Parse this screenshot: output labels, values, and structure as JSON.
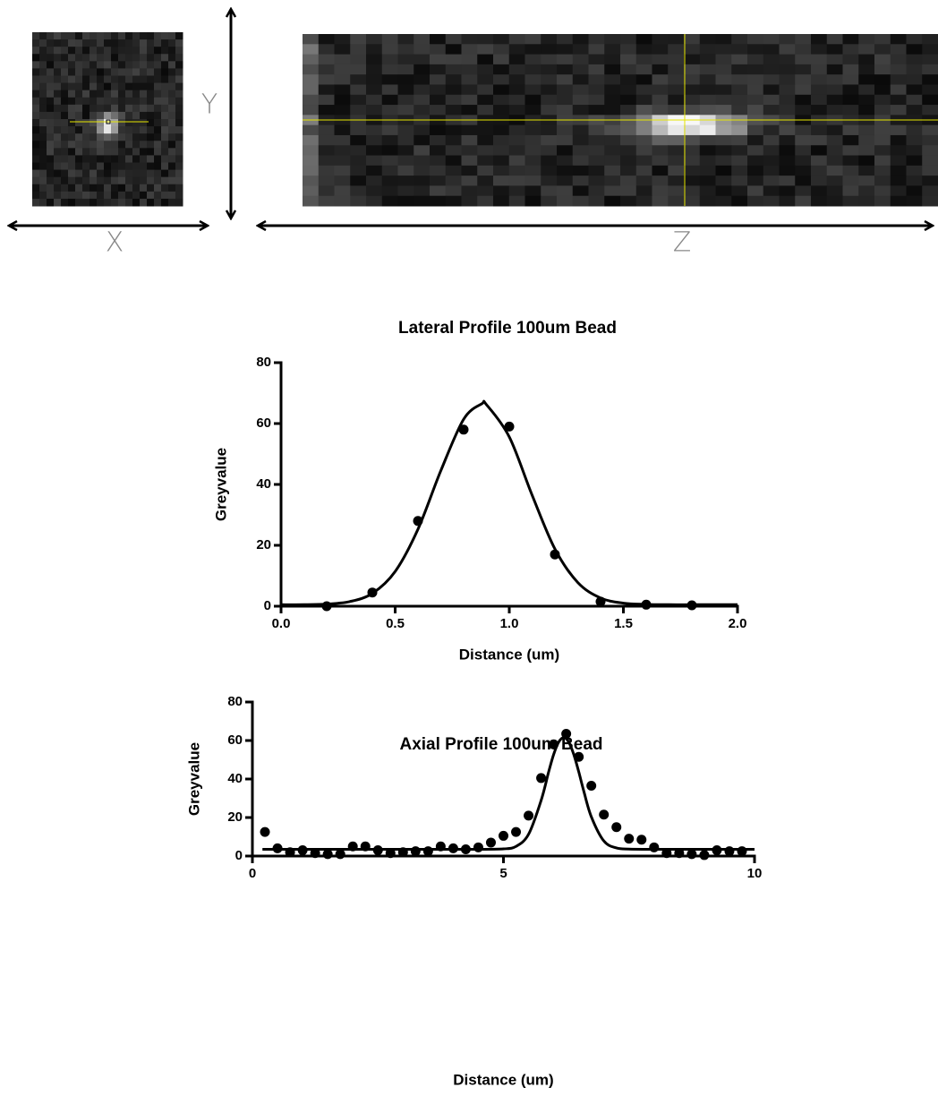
{
  "images": {
    "x_label": "X",
    "y_label": "Y",
    "z_label": "Z"
  },
  "chart_data": [
    {
      "type": "scatter",
      "title": "Lateral Profile 100um Bead",
      "xlabel": "Distance (um)",
      "ylabel": "Greyvalue",
      "xlim": [
        0,
        2
      ],
      "ylim": [
        0,
        80
      ],
      "xticks": [
        {
          "value": 0,
          "label": "0.0"
        },
        {
          "value": 0.5,
          "label": "0.5"
        },
        {
          "value": 1,
          "label": "1.0"
        },
        {
          "value": 1.5,
          "label": "1.5"
        },
        {
          "value": 2,
          "label": "2.0"
        }
      ],
      "yticks": [
        0,
        20,
        40,
        60,
        80
      ],
      "series": [
        {
          "style": "markers",
          "color": "#000000",
          "x": [
            0.2,
            0.4,
            0.6,
            0.8,
            1.0,
            1.2,
            1.4,
            1.6,
            1.8
          ],
          "values": [
            0,
            4.5,
            28,
            58,
            59,
            17,
            1.5,
            0.5,
            0.3
          ]
        },
        {
          "style": "line",
          "color": "#000000",
          "x": [
            0,
            0.1,
            0.2,
            0.3,
            0.4,
            0.5,
            0.6,
            0.7,
            0.8,
            0.88,
            0.9,
            1.0,
            1.1,
            1.2,
            1.3,
            1.4,
            1.5,
            1.6,
            1.7,
            1.8,
            1.9,
            2.0
          ],
          "values": [
            0.5,
            0.5,
            0.7,
            1.5,
            4.2,
            11.4,
            25.3,
            44.5,
            61.4,
            66.5,
            66.2,
            55.6,
            36.5,
            18.8,
            7.8,
            2.7,
            1.0,
            0.6,
            0.5,
            0.5,
            0.5,
            0.5
          ]
        }
      ]
    },
    {
      "type": "scatter",
      "title": "Axial Profile 100um Bead",
      "xlabel": "Distance (um)",
      "ylabel": "Greyvalue",
      "xlim": [
        0,
        10
      ],
      "ylim": [
        0,
        80
      ],
      "xticks": [
        0,
        5,
        10
      ],
      "yticks": [
        0,
        20,
        40,
        60,
        80
      ],
      "series": [
        {
          "style": "markers",
          "color": "#000000",
          "x": [
            0.25,
            0.5,
            0.75,
            1.0,
            1.25,
            1.5,
            1.75,
            2.0,
            2.25,
            2.5,
            2.75,
            3.0,
            3.25,
            3.5,
            3.75,
            4.0,
            4.25,
            4.5,
            4.75,
            5.0,
            5.25,
            5.5,
            5.75,
            6.0,
            6.25,
            6.5,
            6.75,
            7.0,
            7.25,
            7.5,
            7.75,
            8.0,
            8.25,
            8.5,
            8.75,
            9.0,
            9.25,
            9.5,
            9.75
          ],
          "values": [
            12.5,
            4,
            2,
            3,
            1.5,
            1,
            1,
            5,
            5,
            3,
            1.5,
            2,
            2.5,
            2.5,
            5,
            4,
            3.5,
            4.5,
            7,
            10.5,
            12.5,
            21,
            40.5,
            58,
            63.5,
            51.5,
            36.5,
            21.5,
            15,
            9,
            8.5,
            4.5,
            1.5,
            1.5,
            1,
            0.5,
            3,
            2.5,
            2.5
          ]
        },
        {
          "style": "line",
          "color": "#000000",
          "x": [
            0.2,
            1,
            2,
            3,
            4,
            4.5,
            5,
            5.25,
            5.5,
            5.75,
            5.9,
            6.0,
            6.1,
            6.2,
            6.3,
            6.4,
            6.5,
            6.6,
            6.75,
            7.0,
            7.25,
            7.5,
            8,
            9,
            10
          ],
          "values": [
            3.5,
            3.5,
            3.5,
            3.5,
            3.5,
            3.5,
            3.7,
            5.0,
            11.3,
            28.9,
            43.7,
            52.8,
            59.2,
            61.5,
            59.2,
            52.8,
            43.7,
            33.7,
            20.4,
            7.8,
            4.2,
            3.6,
            3.5,
            3.5,
            3.5
          ]
        }
      ]
    }
  ]
}
